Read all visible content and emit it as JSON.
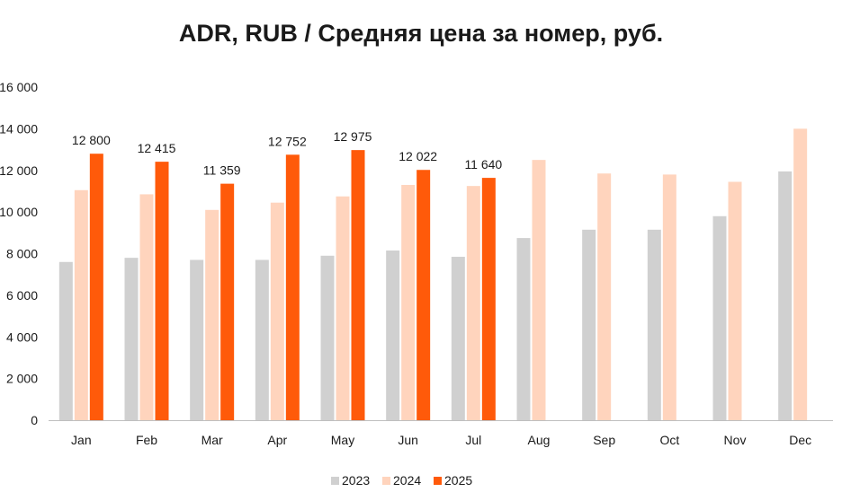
{
  "chart_data": {
    "type": "bar",
    "title": "ADR, RUB / Средняя цена за номер, руб.",
    "xlabel": "",
    "ylabel": "",
    "ylim": [
      0,
      16000
    ],
    "yticks": [
      0,
      2000,
      4000,
      6000,
      8000,
      10000,
      12000,
      14000,
      16000
    ],
    "ytick_labels": [
      "0",
      "2 000",
      "4 000",
      "6 000",
      "8 000",
      "10 000",
      "12 000",
      "14 000",
      "16 000"
    ],
    "categories": [
      "Jan",
      "Feb",
      "Mar",
      "Apr",
      "May",
      "Jun",
      "Jul",
      "Aug",
      "Sep",
      "Oct",
      "Nov",
      "Dec"
    ],
    "series": [
      {
        "name": "2023",
        "color": "#d0d0d0",
        "values": [
          7600,
          7800,
          7700,
          7700,
          7900,
          8150,
          7850,
          8750,
          9150,
          9150,
          9800,
          11950
        ]
      },
      {
        "name": "2024",
        "color": "#ffd4bd",
        "values": [
          11050,
          10850,
          10100,
          10450,
          10750,
          11300,
          11250,
          12500,
          11850,
          11800,
          11450,
          14000
        ]
      },
      {
        "name": "2025",
        "color": "#ff5a0a",
        "values": [
          12800,
          12415,
          11359,
          12752,
          12975,
          12022,
          11640,
          null,
          null,
          null,
          null,
          null
        ],
        "data_labels": [
          "12 800",
          "12 415",
          "11 359",
          "12 752",
          "12 975",
          "12 022",
          "11 640"
        ]
      }
    ],
    "grid": false,
    "legend": "bottom-center"
  }
}
